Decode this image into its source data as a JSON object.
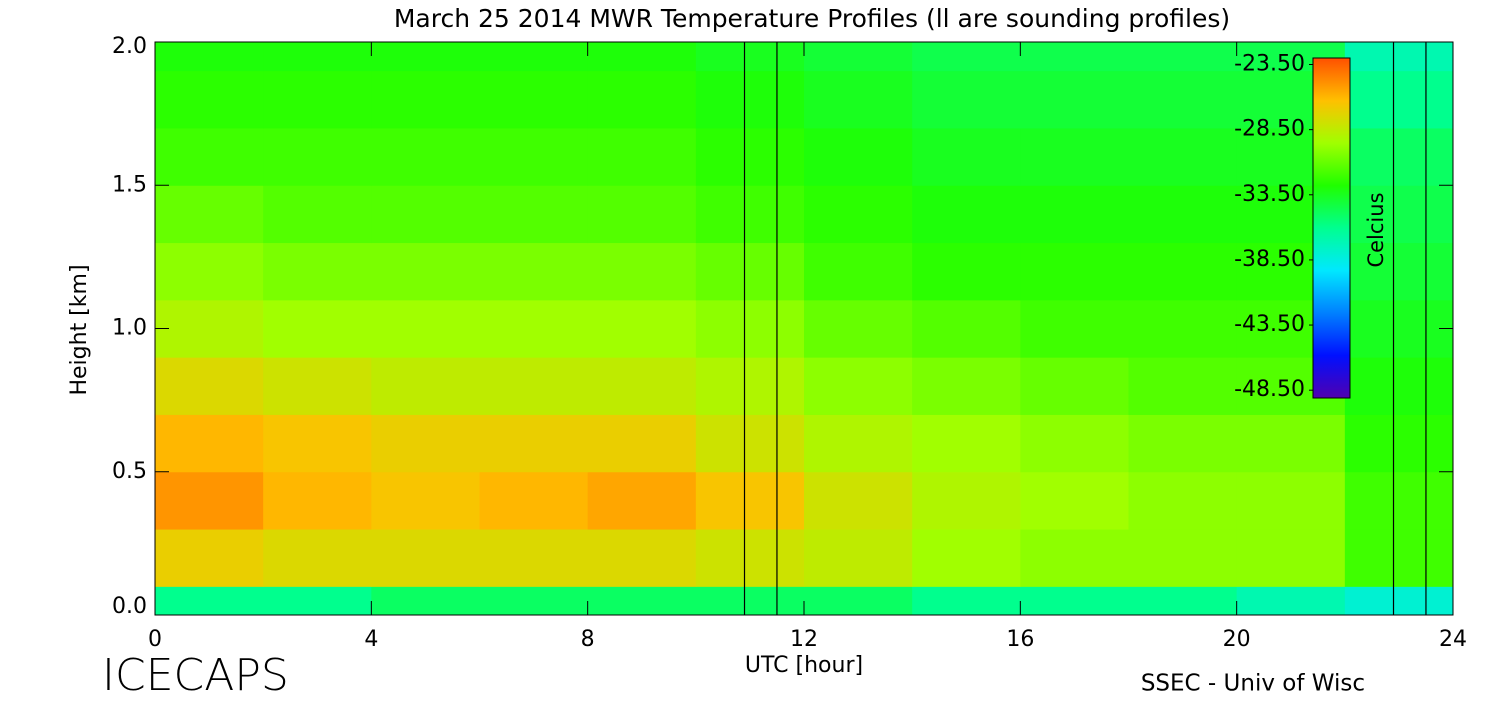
{
  "chart_data": {
    "type": "heatmap",
    "title": "March 25 2014 MWR Temperature Profiles (ll are sounding profiles)",
    "x_label": "UTC [hour]",
    "y_label": "Height [km]",
    "colorbar_label": "Celcius",
    "footer_left": "ICECAPS",
    "footer_right": "SSEC - Univ of Wisc",
    "x": [
      1,
      3,
      5,
      7,
      9,
      11,
      13,
      15,
      17,
      19,
      21,
      23
    ],
    "y": [
      0,
      0.2,
      0.4,
      0.6,
      0.8,
      1.0,
      1.2,
      1.4,
      1.6,
      1.8,
      2.0
    ],
    "z": [
      [
        -36,
        -36,
        -35,
        -35,
        -35,
        -35,
        -35,
        -36,
        -36,
        -36,
        -37,
        -38
      ],
      [
        -27,
        -27.5,
        -27.5,
        -27.5,
        -27.5,
        -28,
        -28.5,
        -29.5,
        -30,
        -30,
        -30,
        -32
      ],
      [
        -25,
        -26,
        -26.5,
        -26,
        -25.5,
        -26.5,
        -28,
        -29,
        -29.5,
        -30,
        -30,
        -32
      ],
      [
        -26,
        -26.5,
        -27,
        -27,
        -27,
        -28,
        -29,
        -29.5,
        -30,
        -30.5,
        -30.5,
        -32.5
      ],
      [
        -27.5,
        -28,
        -28.5,
        -28.5,
        -28.5,
        -29,
        -30,
        -30.5,
        -31,
        -31.5,
        -31.5,
        -33
      ],
      [
        -29,
        -29.5,
        -29.5,
        -29.5,
        -29.5,
        -30,
        -31,
        -31.5,
        -32,
        -32,
        -32,
        -33.5
      ],
      [
        -30,
        -30.5,
        -30.5,
        -30.5,
        -30.5,
        -31,
        -32,
        -32.5,
        -32.5,
        -32.5,
        -32.5,
        -34
      ],
      [
        -31,
        -31.5,
        -31.5,
        -31.5,
        -31.5,
        -32,
        -32.5,
        -33,
        -33,
        -33,
        -33,
        -34.5
      ],
      [
        -32,
        -32,
        -32,
        -32,
        -32,
        -32.5,
        -33,
        -33.5,
        -33.5,
        -33.5,
        -33.5,
        -35
      ],
      [
        -32.5,
        -32.5,
        -32.5,
        -32.5,
        -32.5,
        -33,
        -33.5,
        -34,
        -34,
        -34,
        -34,
        -36
      ],
      [
        -33,
        -33,
        -33,
        -33,
        -33,
        -33.5,
        -34,
        -34.5,
        -34.5,
        -34.5,
        -34.5,
        -37
      ]
    ],
    "soundings": [
      10.9,
      11.5,
      22.9,
      23.5
    ],
    "xlim": [
      0,
      24
    ],
    "ylim": [
      0,
      2.0
    ],
    "xticks": [
      0,
      4,
      8,
      12,
      16,
      20,
      24
    ],
    "yticks": [
      {
        "value": 0,
        "label": "0.0"
      },
      0.5,
      {
        "value": 1,
        "label": "1.0"
      },
      1.5,
      {
        "value": 2,
        "label": "2.0"
      }
    ],
    "clim": [
      -49.1,
      -23.0
    ],
    "colormap": [
      "#5000b0",
      "#0010ff",
      "#0080ff",
      "#00e8ff",
      "#00ff90",
      "#20ff00",
      "#a0ff00",
      "#ffc000",
      "#ff5000"
    ],
    "cticks": [
      {
        "value": -23.5,
        "label": "-23.50"
      },
      {
        "value": -28.5,
        "label": "-28.50"
      },
      {
        "value": -33.5,
        "label": "-33.50"
      },
      {
        "value": -38.5,
        "label": "-38.50"
      },
      {
        "value": -43.5,
        "label": "-43.50"
      },
      {
        "value": -48.5,
        "label": "-48.50"
      }
    ]
  }
}
